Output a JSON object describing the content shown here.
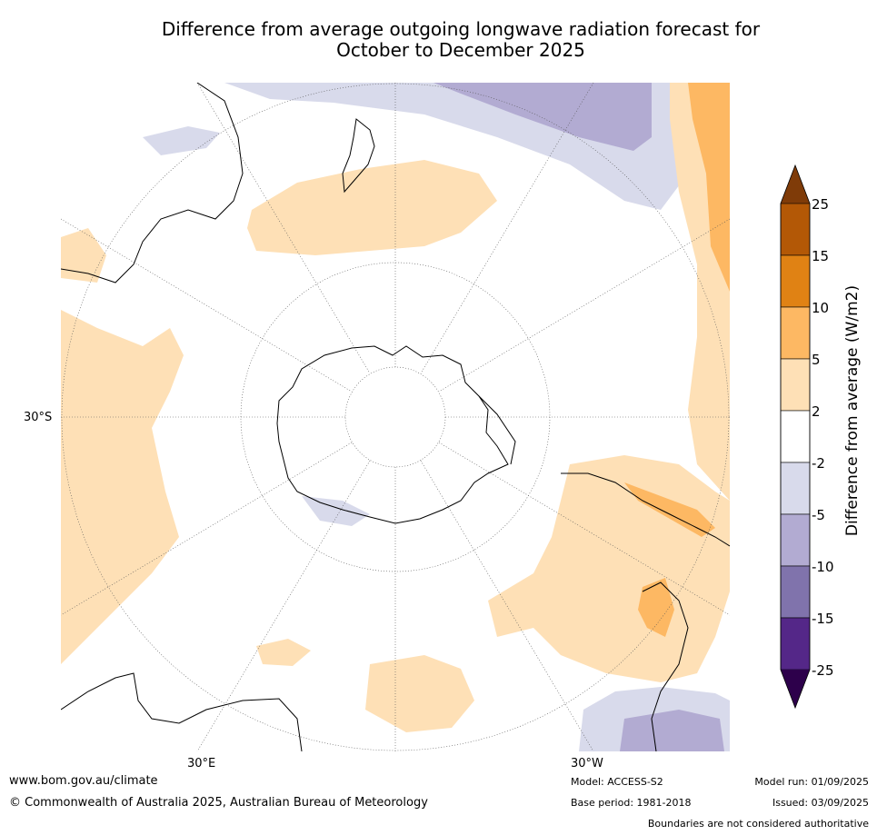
{
  "title": {
    "line1": "Difference from average outgoing longwave radiation forecast for",
    "line2": "October to December 2025"
  },
  "map": {
    "projection": "south-polar-stereographic",
    "lat_label": "30°S",
    "lon_labels": [
      "30°E",
      "30°W"
    ]
  },
  "colorbar": {
    "label": "Difference from average (W/m2)",
    "ticks": [
      "25",
      "15",
      "10",
      "5",
      "2",
      "-2",
      "-5",
      "-10",
      "-15",
      "-25"
    ],
    "colors": [
      "#7f3b08",
      "#b35806",
      "#e08214",
      "#fdb863",
      "#fee0b6",
      "#ffffff",
      "#d8daeb",
      "#b2abd2",
      "#8073ac",
      "#542788",
      "#2d004b"
    ]
  },
  "footer": {
    "website": "www.bom.gov.au/climate",
    "copyright": "© Commonwealth of Australia 2025, Australian Bureau of Meteorology",
    "model": "Model: ACCESS-S2",
    "base_period": "Base period: 1981-2018",
    "model_run": "Model run: 01/09/2025",
    "issued": "Issued: 03/09/2025",
    "disclaimer": "Boundaries are not considered authoritative"
  }
}
